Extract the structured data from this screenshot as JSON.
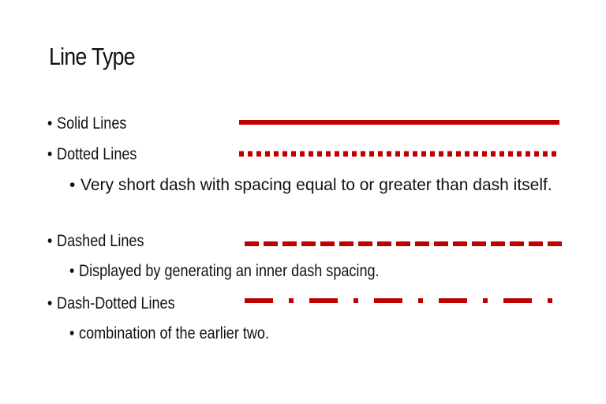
{
  "slide": {
    "title": "Line Type",
    "bullet_symbol": "•",
    "items": [
      {
        "label": "Solid Lines"
      },
      {
        "label": "Dotted Lines",
        "sub": "Very short dash with spacing equal to or greater than dash itself."
      },
      {
        "label": "Dashed Lines",
        "sub": "Displayed by generating an inner dash spacing."
      },
      {
        "label": "Dash-Dotted Lines",
        "sub": "combination of the earlier two."
      }
    ],
    "line_color": "#c00000"
  }
}
